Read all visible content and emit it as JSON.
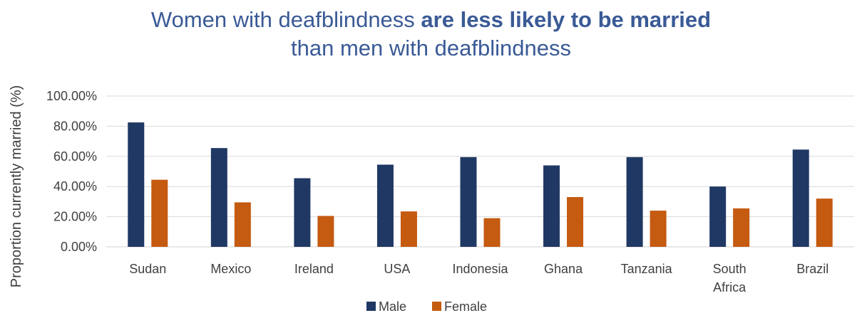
{
  "chart_data": {
    "type": "bar",
    "title_part1": "Women with deafblindness ",
    "title_bold": "are less likely to be married",
    "title_part2": "than men with deafblindness",
    "xlabel": "",
    "ylabel": "Proportion currently married (%)",
    "ylim": [
      0,
      100
    ],
    "yticks": [
      "0.00%",
      "20.00%",
      "40.00%",
      "60.00%",
      "80.00%",
      "100.00%"
    ],
    "grid": true,
    "legend_position": "bottom",
    "categories": [
      [
        "Sudan"
      ],
      [
        "Mexico"
      ],
      [
        "Ireland"
      ],
      [
        "USA"
      ],
      [
        "Indonesia"
      ],
      [
        "Ghana"
      ],
      [
        "Tanzania"
      ],
      [
        "South",
        "Africa"
      ],
      [
        "Brazil"
      ]
    ],
    "series": [
      {
        "name": "Male",
        "color": "#203864",
        "values": [
          82.5,
          65.5,
          45.5,
          54.5,
          59.5,
          54.0,
          59.5,
          40.0,
          64.5
        ]
      },
      {
        "name": "Female",
        "color": "#c55a11",
        "values": [
          44.5,
          29.5,
          20.5,
          23.5,
          19.0,
          33.0,
          24.0,
          25.5,
          32.0
        ]
      }
    ]
  }
}
